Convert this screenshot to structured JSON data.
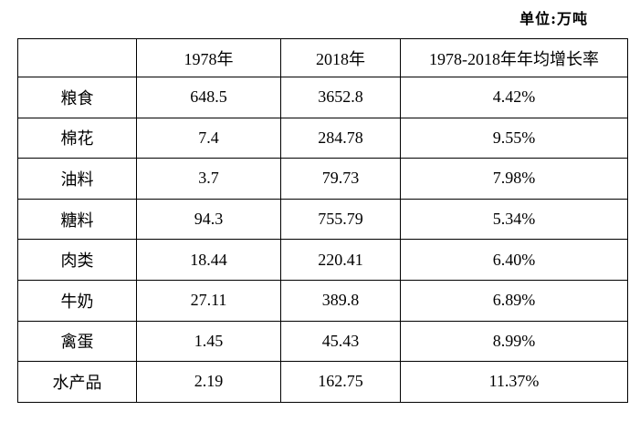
{
  "unit_label": "单位:万吨",
  "table": {
    "header": [
      "",
      "1978年",
      "2018年",
      "1978-2018年年均增长率"
    ],
    "rows": [
      [
        "粮食",
        "648.5",
        "3652.8",
        "4.42%"
      ],
      [
        "棉花",
        "7.4",
        "284.78",
        "9.55%"
      ],
      [
        "油料",
        "3.7",
        "79.73",
        "7.98%"
      ],
      [
        "糖料",
        "94.3",
        "755.79",
        "5.34%"
      ],
      [
        "肉类",
        "18.44",
        "220.41",
        "6.40%"
      ],
      [
        "牛奶",
        "27.11",
        "389.8",
        "6.89%"
      ],
      [
        "禽蛋",
        "1.45",
        "45.43",
        "8.99%"
      ],
      [
        "水产品",
        "2.19",
        "162.75",
        "11.37%"
      ]
    ]
  }
}
